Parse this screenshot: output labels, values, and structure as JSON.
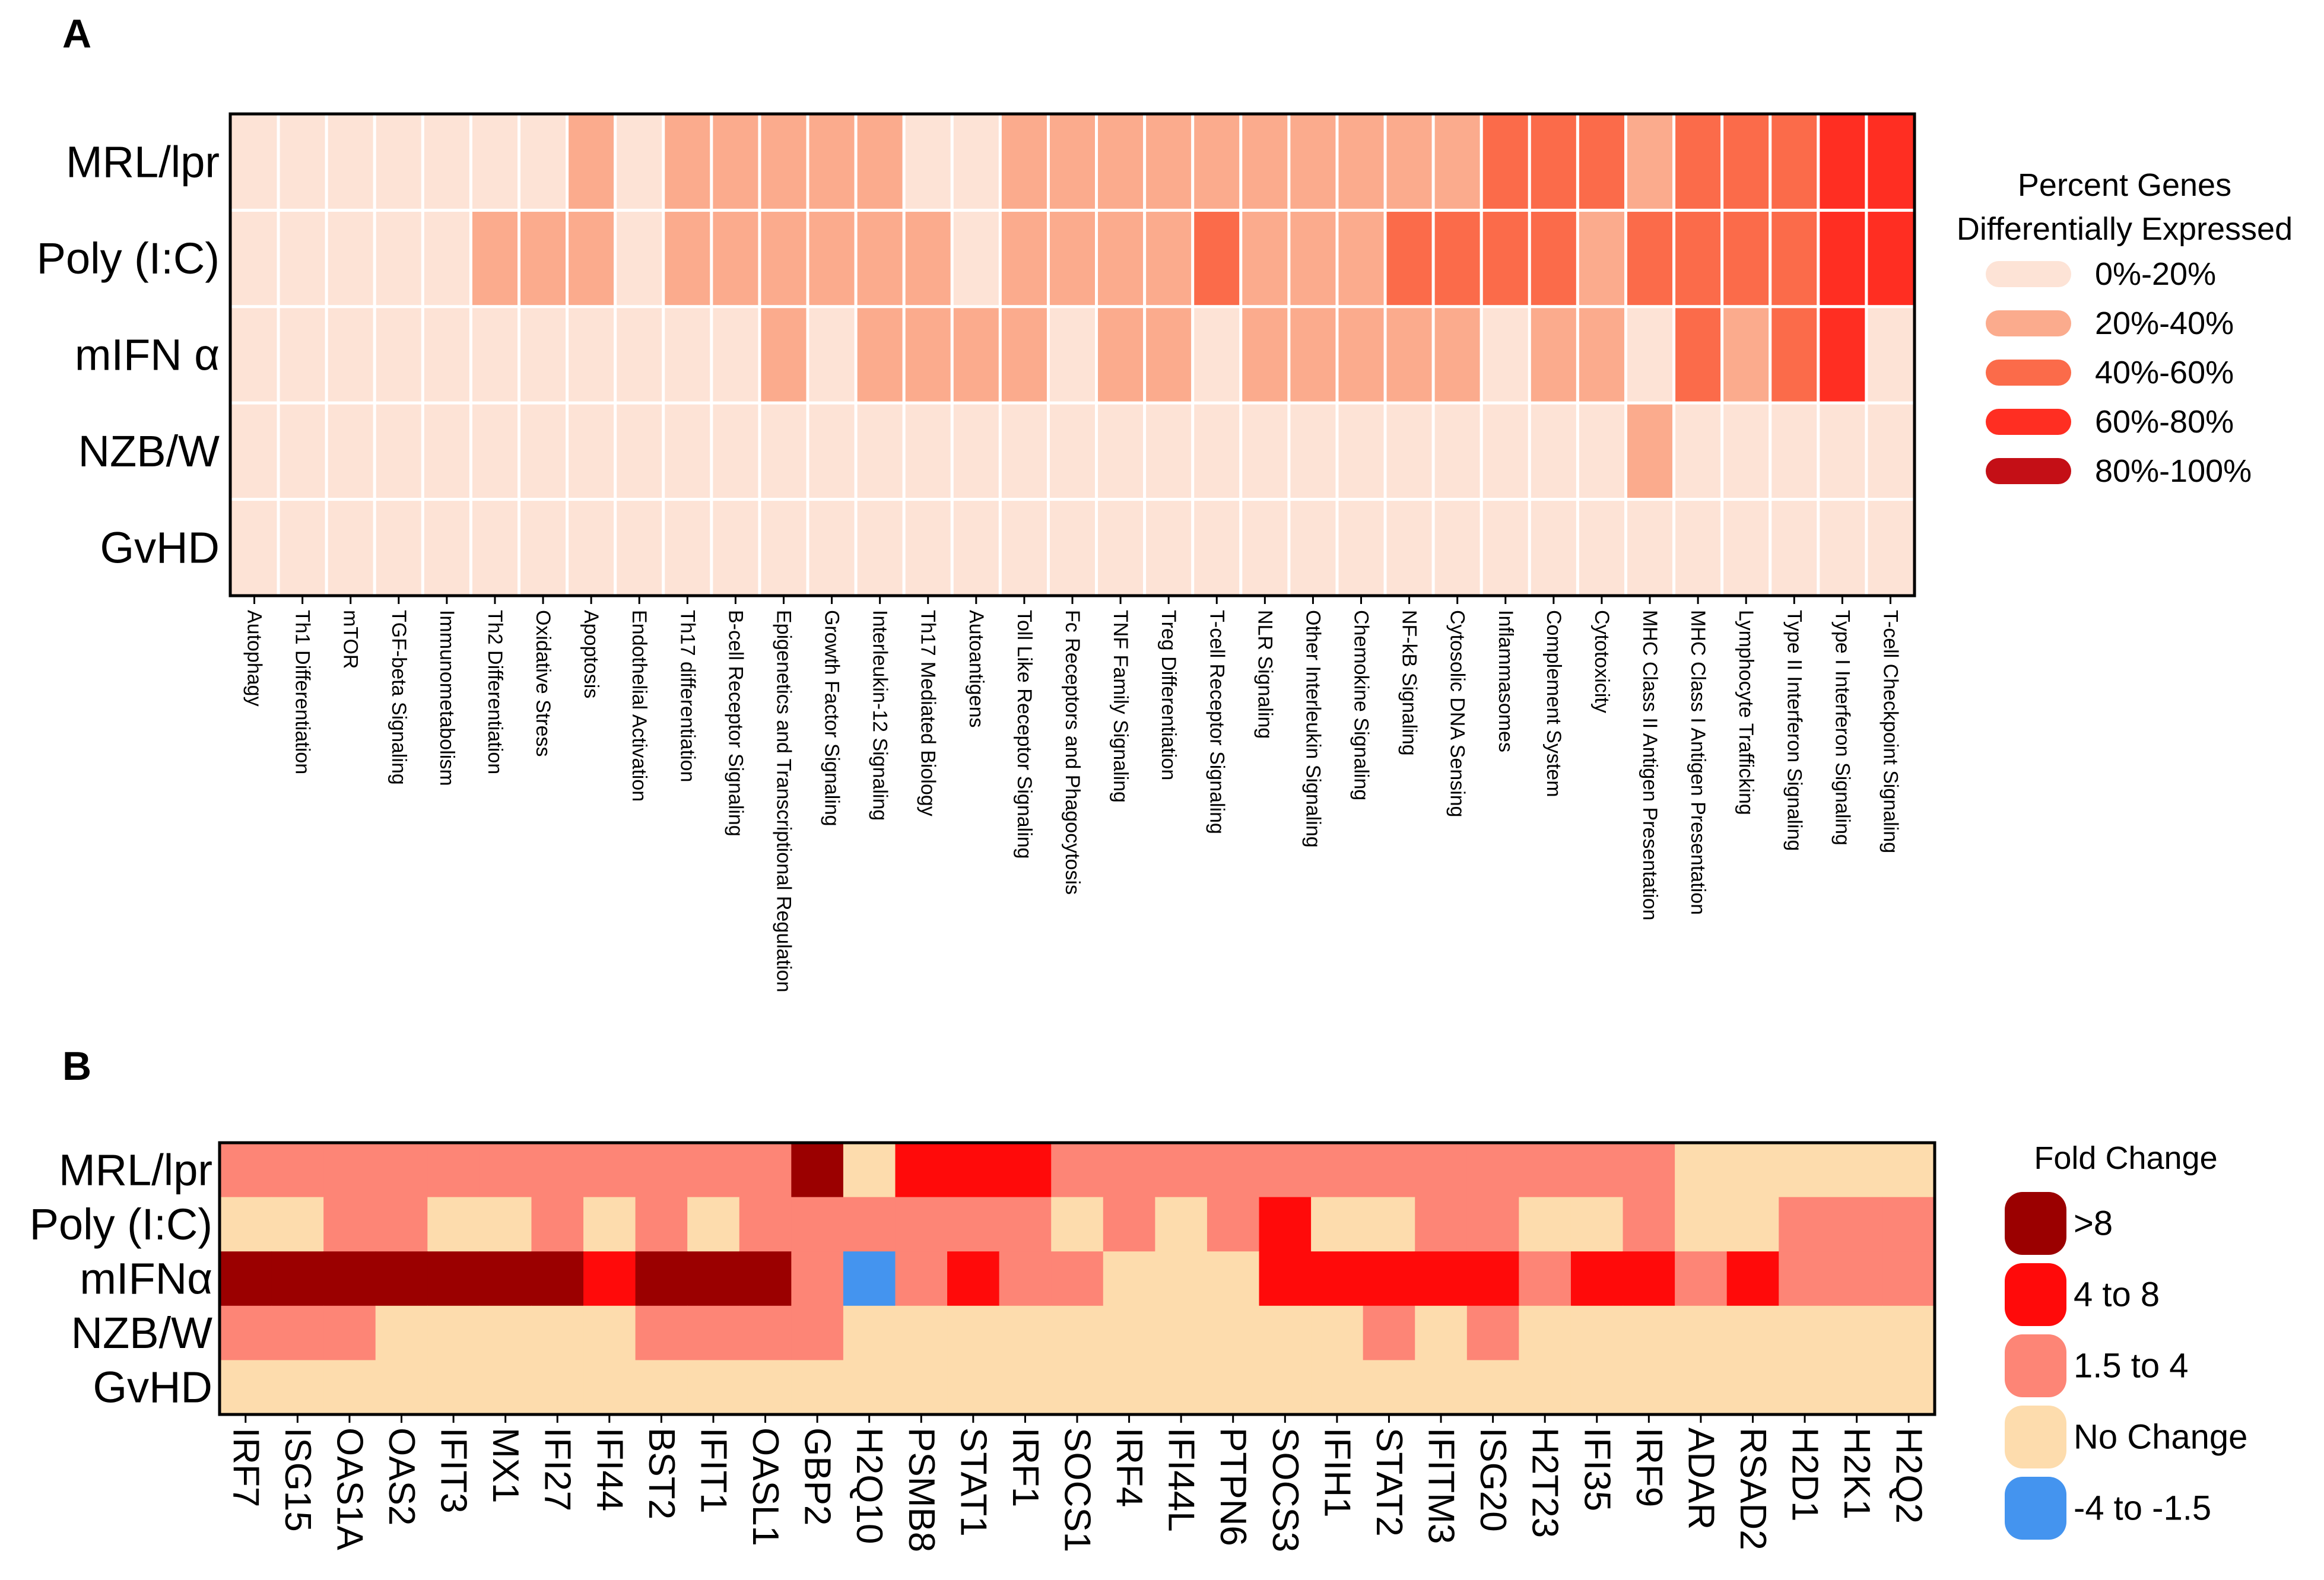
{
  "chart_data": [
    {
      "panel": "A",
      "type": "heatmap",
      "rows": [
        "MRL/lpr",
        "Poly (I:C)",
        "mIFN α",
        "NZB/W",
        "GvHD"
      ],
      "columns": [
        "Autophagy",
        "Th1 Differentiation",
        "mTOR",
        "TGF-beta Signaling",
        "Immunometabolism",
        "Th2 Differentiation",
        "Oxidative Stress",
        "Apoptosis",
        "Endothelial Activation",
        "Th17 differentiation",
        "B-cell Receptor Signaling",
        "Epigenetics and Transcriptional Regulation",
        "Growth Factor Signaling",
        "Interleukin-12 Signaling",
        "Th17 Mediated Biology",
        "Autoantigens",
        "Toll Like Receptor Signaling",
        "Fc Receptors and Phagocytosis",
        "TNF Family Signaling",
        "Treg Differentiation",
        "T-cell Receptor Signaling",
        "NLR Signaling",
        "Other Interleukin Signaling",
        "Chemokine Signaling",
        "NF-kB Signaling",
        "Cytosolic DNA Sensing",
        "Inflammasomes",
        "Complement System",
        "Cytotoxicity",
        "MHC Class II Antigen Presentation",
        "MHC Class I Antigen Presentation",
        "Lymphocyte Trafficking",
        "Type II Interferon Signaling",
        "Type I Interferon Signaling",
        "T-cell Checkpoint Signaling"
      ],
      "value_categories": [
        "0%-20%",
        "20%-40%",
        "40%-60%",
        "60%-80%",
        "80%-100%"
      ],
      "values": [
        [
          0,
          0,
          0,
          0,
          0,
          0,
          0,
          1,
          0,
          1,
          1,
          1,
          1,
          1,
          0,
          0,
          1,
          1,
          1,
          1,
          1,
          1,
          1,
          1,
          1,
          1,
          2,
          2,
          2,
          1,
          2,
          2,
          2,
          3,
          3
        ],
        [
          0,
          0,
          0,
          0,
          0,
          1,
          1,
          1,
          0,
          1,
          1,
          1,
          1,
          1,
          1,
          0,
          1,
          1,
          1,
          1,
          2,
          1,
          1,
          1,
          2,
          2,
          2,
          2,
          1,
          2,
          2,
          2,
          2,
          3,
          3
        ],
        [
          0,
          0,
          0,
          0,
          0,
          0,
          0,
          0,
          0,
          0,
          0,
          1,
          0,
          1,
          1,
          1,
          1,
          0,
          1,
          1,
          0,
          1,
          1,
          1,
          1,
          1,
          0,
          1,
          1,
          0,
          2,
          1,
          2,
          3,
          0
        ],
        [
          0,
          0,
          0,
          0,
          0,
          0,
          0,
          0,
          0,
          0,
          0,
          0,
          0,
          0,
          0,
          0,
          0,
          0,
          0,
          0,
          0,
          0,
          0,
          0,
          0,
          0,
          0,
          0,
          0,
          1,
          0,
          0,
          0,
          0,
          0
        ],
        [
          0,
          0,
          0,
          0,
          0,
          0,
          0,
          0,
          0,
          0,
          0,
          0,
          0,
          0,
          0,
          0,
          0,
          0,
          0,
          0,
          0,
          0,
          0,
          0,
          0,
          0,
          0,
          0,
          0,
          0,
          0,
          0,
          0,
          0,
          0
        ]
      ],
      "legend_title": [
        "Percent Genes",
        "Differentially Expressed"
      ],
      "legend_placement": "right",
      "colors": [
        "#fde3d6",
        "#fbab8d",
        "#fb6b4a",
        "#ff2e22",
        "#c40f16"
      ]
    },
    {
      "panel": "B",
      "type": "heatmap",
      "rows": [
        "MRL/lpr",
        "Poly (I:C)",
        "mIFNα",
        "NZB/W",
        "GvHD"
      ],
      "columns": [
        "IRF7",
        "ISG15",
        "OAS1A",
        "OAS2",
        "IFIT3",
        "MX1",
        "IFI27",
        "IFI44",
        "BST2",
        "IFIT1",
        "OASL1",
        "GBP2",
        "H2Q10",
        "PSMB8",
        "STAT1",
        "IRF1",
        "SOCS1",
        "IRF4",
        "IFI44L",
        "PTPN6",
        "SOCS3",
        "IFIH1",
        "STAT2",
        "IFITM3",
        "ISG20",
        "H2T23",
        "IFI35",
        "IRF9",
        "ADAR",
        "RSAD2",
        "H2D1",
        "H2K1",
        "H2Q2"
      ],
      "value_categories": [
        ">8",
        "4 to 8",
        "1.5 to 4",
        "No Change",
        "-4 to -1.5"
      ],
      "values": [
        [
          2,
          2,
          2,
          2,
          2,
          2,
          2,
          2,
          2,
          2,
          2,
          0,
          3,
          1,
          1,
          1,
          2,
          2,
          2,
          2,
          2,
          2,
          2,
          2,
          2,
          2,
          2,
          2,
          3,
          3,
          3,
          3,
          3
        ],
        [
          3,
          3,
          2,
          2,
          3,
          3,
          2,
          3,
          2,
          3,
          2,
          2,
          2,
          2,
          2,
          2,
          3,
          2,
          3,
          2,
          1,
          3,
          3,
          2,
          2,
          3,
          3,
          2,
          3,
          3,
          2,
          2,
          2
        ],
        [
          0,
          0,
          0,
          0,
          0,
          0,
          0,
          1,
          0,
          0,
          0,
          2,
          4,
          2,
          1,
          2,
          2,
          3,
          3,
          3,
          1,
          1,
          1,
          1,
          1,
          2,
          1,
          1,
          2,
          1,
          2,
          2,
          2
        ],
        [
          2,
          2,
          2,
          3,
          3,
          3,
          3,
          3,
          2,
          2,
          2,
          2,
          3,
          3,
          3,
          3,
          3,
          3,
          3,
          3,
          3,
          3,
          2,
          3,
          2,
          3,
          3,
          3,
          3,
          3,
          3,
          3,
          3
        ],
        [
          3,
          3,
          3,
          3,
          3,
          3,
          3,
          3,
          3,
          3,
          3,
          3,
          3,
          3,
          3,
          3,
          3,
          3,
          3,
          3,
          3,
          3,
          3,
          3,
          3,
          3,
          3,
          3,
          3,
          3,
          3,
          3,
          3
        ]
      ],
      "legend_title": "Fold Change",
      "legend_placement": "right",
      "colors": [
        "#9b0000",
        "#ff0a0a",
        "#fd8576",
        "#fddcad",
        "#4494ef"
      ]
    }
  ]
}
